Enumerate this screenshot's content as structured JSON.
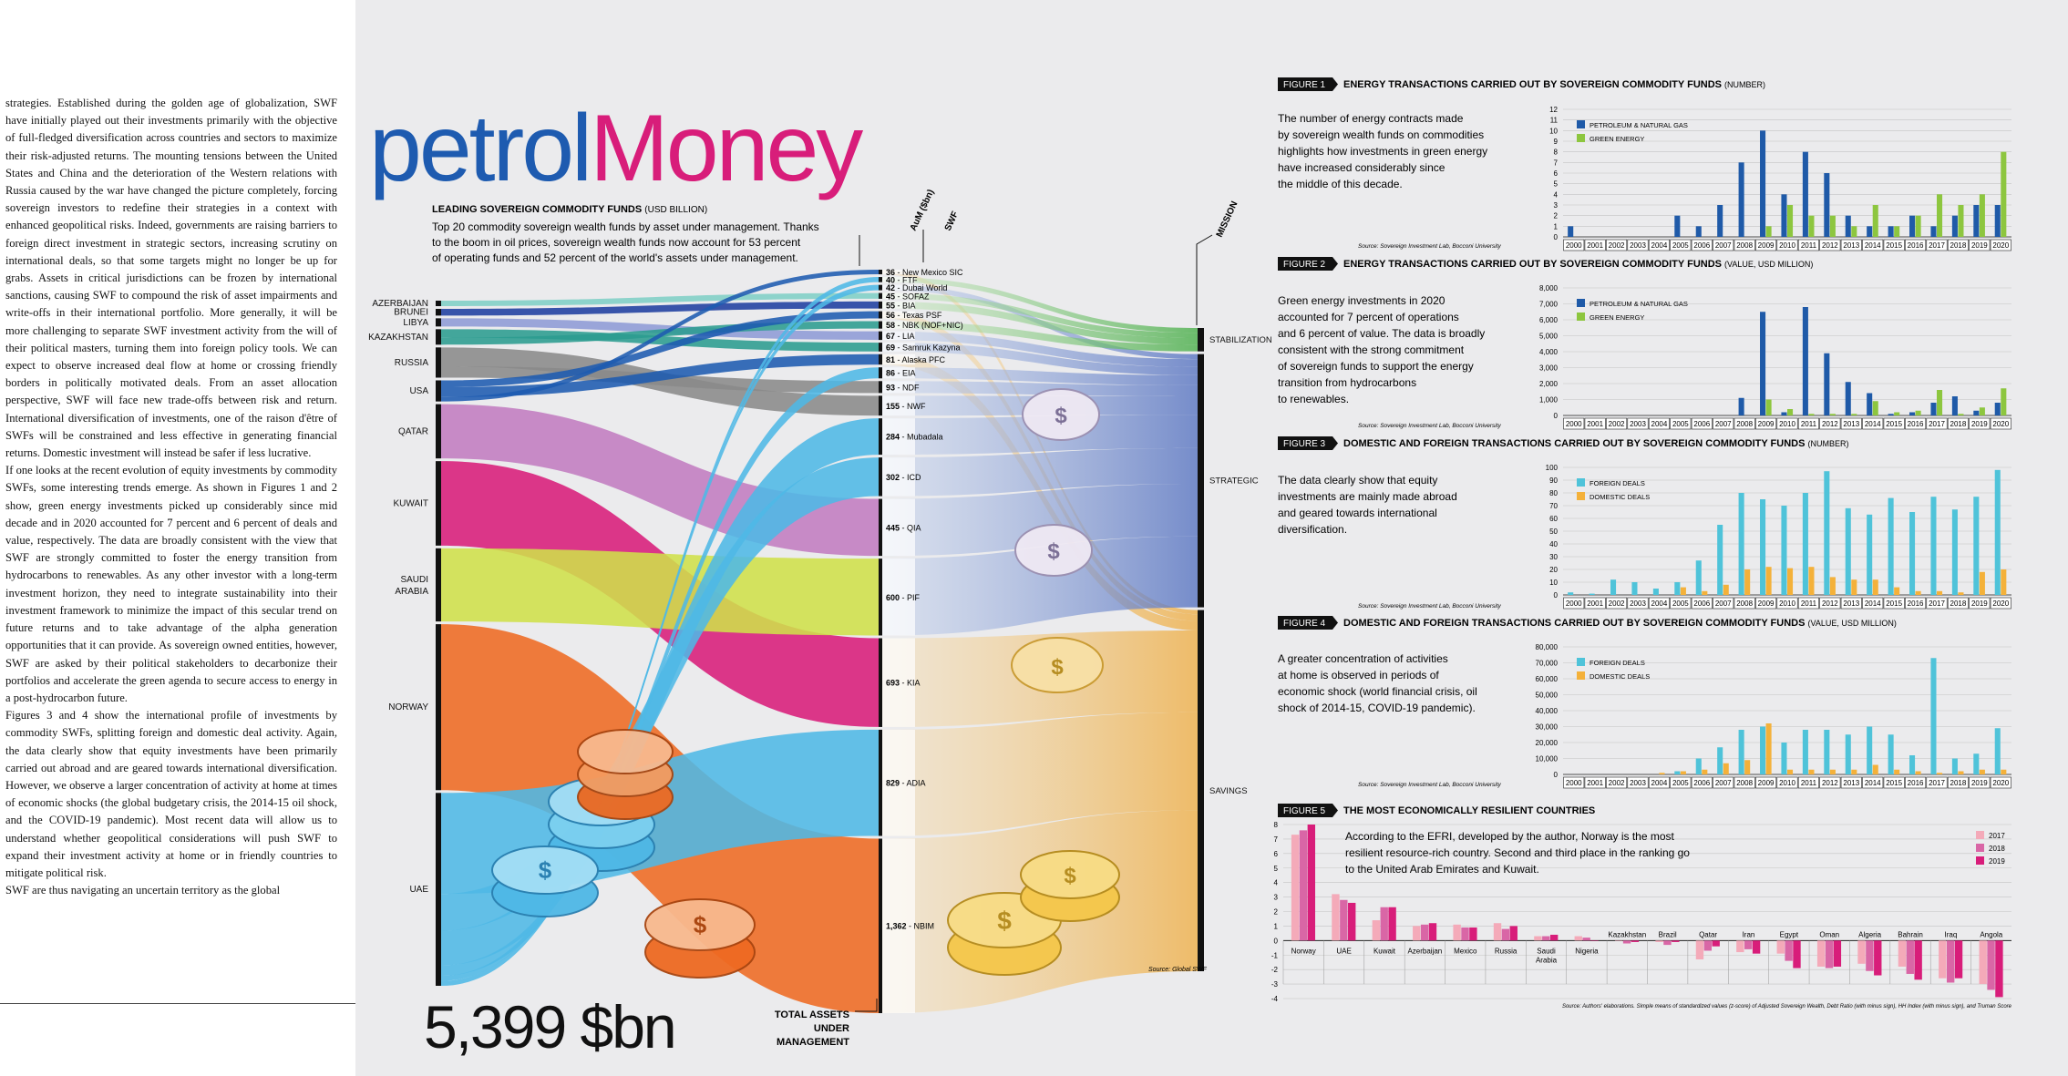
{
  "body_text": {
    "paragraphs": [
      "strategies. Established during the golden age of globalization, SWF have initially played out their investments primarily with the objective of full-fledged diversification across countries and sectors to maximize their risk-adjusted returns. The mounting tensions between the United States and China and the deterioration of the Western relations with Russia caused by the war have changed the picture completely, forcing sovereign investors to redefine their strategies in a context with enhanced geopolitical risks. Indeed, governments are raising barriers to foreign direct investment in strategic sectors, increasing scrutiny on international deals, so that some targets might no longer be up for grabs. Assets in critical jurisdictions can be frozen by international sanctions, causing SWF to compound the risk of asset impairments and write-offs in their international portfolio. More generally, it will be more challenging to separate SWF investment activity from the will of their political masters, turning them into foreign policy tools. We can expect to observe increased deal flow at home or crossing friendly borders in politically motivated deals. From an asset allocation perspective, SWF will face new trade-offs between risk and return. International diversification of investments, one of the raison d'être of SWFs will be constrained and less effective in generating financial returns. Domestic investment will instead be safer if less lucrative.",
      "If one looks at the recent evolution of equity investments by commodity SWFs, some interesting trends emerge. As shown in Figures 1 and 2 show, green energy investments picked up considerably since mid decade and in 2020 accounted for 7 percent and 6 percent of deals and value, respectively. The data are broadly consistent with the view that SWF are strongly committed to foster the energy transition from hydrocarbons to renewables. As any other investor with a long-term investment horizon, they need to integrate sustainability into their investment framework to minimize the impact of this secular trend on future returns and to take advantage of the alpha generation opportunities that it can provide. As sovereign owned entities, however, SWF are asked by their political stakeholders to decarbonize their portfolios and accelerate the green agenda to secure access to energy in a post-hydrocarbon future.",
      "Figures 3 and 4 show the international profile of investments by commodity SWFs, splitting foreign and domestic deal activity. Again, the data clearly show that equity investments have been primarily carried out abroad and are geared towards international diversification. However, we observe a larger concentration of activity at home at times of economic shocks (the global budgetary crisis, the 2014-15 oil shock, and the COVID-19 pandemic). Most recent data will allow us to understand whether geopolitical considerations will push SWF to expand their investment activity at home or in friendly countries to mitigate political risk.",
      "SWF are thus navigating an uncertain territory as the global"
    ]
  },
  "header": {
    "title_part1": "petrol",
    "title_part2": "Money"
  },
  "sankey": {
    "heading": "LEADING SOVEREIGN COMMODITY FUNDS",
    "heading_unit": "(USD BILLION)",
    "intro": [
      "Top 20 commodity sovereign wealth funds by asset under management. Thanks",
      "to the boom in oil prices, sovereign wealth funds now account for 53 percent",
      "of operating funds and 52 percent of the world's assets under management."
    ],
    "col_aum": "AuM ($bn)",
    "col_swf": "SWF",
    "col_mission": "MISSION",
    "total_value": "5,399 $bn",
    "total_label": [
      "TOTAL ASSETS",
      "UNDER",
      "MANAGEMENT"
    ],
    "source": "Source: Global SWF",
    "countries": [
      {
        "name": "AZERBAIJAN",
        "color": "#7fcfc6"
      },
      {
        "name": "BRUNEI",
        "color": "#1f3fa0"
      },
      {
        "name": "LIBYA",
        "color": "#8e9bd6"
      },
      {
        "name": "KAZAKHSTAN",
        "color": "#2b9c8f"
      },
      {
        "name": "RUSSIA",
        "color": "#8a8a8a"
      },
      {
        "name": "USA",
        "color": "#1e5bb0"
      },
      {
        "name": "QATAR",
        "color": "#c27cc0"
      },
      {
        "name": "KUWAIT",
        "color": "#d81d7a"
      },
      {
        "name": "SAUDI ARABIA",
        "color": "#cfe04a"
      },
      {
        "name": "NORWAY",
        "color": "#ee6a22"
      },
      {
        "name": "UAE",
        "color": "#4fb8e6"
      }
    ],
    "funds": [
      {
        "aum": "36",
        "name": "New Mexico SIC",
        "color": "#1e5bb0"
      },
      {
        "aum": "40",
        "name": "FTF",
        "color": "#ee6a22"
      },
      {
        "aum": "42",
        "name": "Dubai World",
        "color": "#4fb8e6"
      },
      {
        "aum": "45",
        "name": "SOFAZ",
        "color": "#7fcfc6"
      },
      {
        "aum": "55",
        "name": "BIA",
        "color": "#d81d7a"
      },
      {
        "aum": "56",
        "name": "Texas PSF",
        "color": "#1e5bb0"
      },
      {
        "aum": "58",
        "name": "NBK (NOF+NIC)",
        "color": "#1e5bb0"
      },
      {
        "aum": "67",
        "name": "LIA",
        "color": "#8e9bd6"
      },
      {
        "aum": "69",
        "name": "Samruk Kazyna",
        "color": "#2b9c8f"
      },
      {
        "aum": "81",
        "name": "Alaska PFC",
        "color": "#1e5bb0"
      },
      {
        "aum": "86",
        "name": "EIA",
        "color": "#4fb8e6"
      },
      {
        "aum": "93",
        "name": "NDF",
        "color": "#cfe04a"
      },
      {
        "aum": "155",
        "name": "NWF",
        "color": "#777777"
      },
      {
        "aum": "284",
        "name": "Mubadala",
        "color": "#4fb8e6"
      },
      {
        "aum": "302",
        "name": "ICD",
        "color": "#4fb8e6"
      },
      {
        "aum": "445",
        "name": "QIA",
        "color": "#c27cc0"
      },
      {
        "aum": "600",
        "name": "PIF",
        "color": "#cfe04a"
      },
      {
        "aum": "693",
        "name": "KIA",
        "color": "#d81d7a"
      },
      {
        "aum": "829",
        "name": "ADIA",
        "color": "#4fb8e6"
      },
      {
        "aum": "1,362",
        "name": "NBIM",
        "color": "#ee6a22"
      }
    ],
    "missions": [
      {
        "name": "STABILIZATION",
        "color": "#4caf4c"
      },
      {
        "name": "STRATEGIC",
        "color": "#5a76c2"
      },
      {
        "name": "SAVINGS",
        "color": "#eeb04a"
      }
    ]
  },
  "figures": [
    {
      "tag": "FIGURE 1",
      "title": "ENERGY TRANSACTIONS CARRIED OUT BY SOVEREIGN COMMODITY FUNDS",
      "unit": "(NUMBER)",
      "text": [
        "The number of energy contracts made",
        "by sovereign wealth funds on commodities",
        "highlights how investments in green energy",
        "have increased considerably since",
        "the middle of this decade."
      ],
      "source": "Source: Sovereign Investment Lab, Bocconi University"
    },
    {
      "tag": "FIGURE 2",
      "title": "ENERGY TRANSACTIONS CARRIED OUT BY SOVEREIGN COMMODITY FUNDS",
      "unit": "(VALUE, USD MILLION)",
      "text": [
        "Green energy investments in 2020",
        "accounted for 7 percent of operations",
        "and 6 percent of value. The data is broadly",
        "consistent with the strong commitment",
        "of sovereign funds to support the energy",
        "transition from hydrocarbons",
        "to renewables."
      ],
      "source": "Source: Sovereign Investment Lab, Bocconi University"
    },
    {
      "tag": "FIGURE 3",
      "title": "DOMESTIC AND FOREIGN TRANSACTIONS CARRIED OUT BY SOVEREIGN COMMODITY FUNDS",
      "unit": "(NUMBER)",
      "text": [
        "The data clearly show that equity",
        "investments are mainly made abroad",
        "and geared towards international",
        "diversification."
      ],
      "source": "Source: Sovereign Investment Lab, Bocconi University"
    },
    {
      "tag": "FIGURE 4",
      "title": "DOMESTIC AND FOREIGN TRANSACTIONS CARRIED OUT BY SOVEREIGN COMMODITY FUNDS",
      "unit": "(VALUE, USD MILLION)",
      "text": [
        "A greater concentration of activities",
        "at home is observed in periods of",
        "economic shock (world financial crisis, oil",
        "shock of 2014-15, COVID-19 pandemic)."
      ],
      "source": "Source: Sovereign Investment Lab, Bocconi University"
    },
    {
      "tag": "FIGURE 5",
      "title": "THE MOST ECONOMICALLY RESILIENT COUNTRIES",
      "unit": "",
      "text": [
        "According to the EFRI, developed by the author, Norway is the most",
        "resilient resource-rich country. Second and third place in the ranking go",
        "to the United Arab Emirates and Kuwait."
      ],
      "source": "Source: Authors' elaborations. Simple means of standardized values (z-score) of Adjusted Sovereign Wealth, Debt Ratio (with minus sign), HH Index (with minus sign), and Truman Score"
    }
  ],
  "chart_data": [
    {
      "type": "bar",
      "id": "fig1",
      "categories": [
        "2000",
        "2001",
        "2002",
        "2003",
        "2004",
        "2005",
        "2006",
        "2007",
        "2008",
        "2009",
        "2010",
        "2011",
        "2012",
        "2013",
        "2014",
        "2015",
        "2016",
        "2017",
        "2018",
        "2019",
        "2020"
      ],
      "series": [
        {
          "name": "PETROLEUM & NATURAL GAS",
          "color": "#1f5aa8",
          "values": [
            1,
            0,
            0,
            0,
            0,
            2,
            1,
            3,
            7,
            10,
            4,
            8,
            6,
            2,
            1,
            1,
            2,
            1,
            2,
            3,
            3
          ]
        },
        {
          "name": "GREEN ENERGY",
          "color": "#8dc63f",
          "values": [
            0,
            0,
            0,
            0,
            0,
            0,
            0,
            0,
            0,
            1,
            3,
            2,
            2,
            1,
            3,
            1,
            2,
            4,
            3,
            4,
            8
          ]
        }
      ],
      "ylim": [
        0,
        12
      ],
      "yticks": [
        0,
        1,
        2,
        3,
        4,
        5,
        6,
        7,
        8,
        9,
        10,
        11,
        12
      ],
      "ytick_labels": [
        "0",
        "1",
        "2",
        "3",
        "4",
        "5",
        "6",
        "7",
        "8",
        "9",
        "10",
        "11",
        "12"
      ]
    },
    {
      "type": "bar",
      "id": "fig2",
      "categories": [
        "2000",
        "2001",
        "2002",
        "2003",
        "2004",
        "2005",
        "2006",
        "2007",
        "2008",
        "2009",
        "2010",
        "2011",
        "2012",
        "2013",
        "2014",
        "2015",
        "2016",
        "2017",
        "2018",
        "2019",
        "2020"
      ],
      "series": [
        {
          "name": "PETROLEUM & NATURAL GAS",
          "color": "#1f5aa8",
          "values": [
            0,
            0,
            0,
            0,
            0,
            0,
            0,
            0,
            1100,
            6500,
            200,
            6800,
            3900,
            2100,
            1400,
            100,
            200,
            800,
            1200,
            300,
            800
          ]
        },
        {
          "name": "GREEN ENERGY",
          "color": "#8dc63f",
          "values": [
            0,
            0,
            0,
            0,
            0,
            0,
            0,
            0,
            0,
            1000,
            400,
            100,
            100,
            100,
            900,
            200,
            300,
            1600,
            100,
            500,
            1700
          ]
        }
      ],
      "ylim": [
        0,
        8000
      ],
      "yticks": [
        0,
        1000,
        2000,
        3000,
        4000,
        5000,
        6000,
        7000,
        8000
      ],
      "ytick_labels": [
        "0",
        "1,000",
        "2,000",
        "3,000",
        "4,000",
        "5,000",
        "6,000",
        "7,000",
        "8,000"
      ]
    },
    {
      "type": "bar",
      "id": "fig3",
      "categories": [
        "2000",
        "2001",
        "2002",
        "2003",
        "2004",
        "2005",
        "2006",
        "2007",
        "2008",
        "2009",
        "2010",
        "2011",
        "2012",
        "2013",
        "2014",
        "2015",
        "2016",
        "2017",
        "2018",
        "2019",
        "2020"
      ],
      "series": [
        {
          "name": "FOREIGN DEALS",
          "color": "#4fc3d9",
          "values": [
            2,
            1,
            12,
            10,
            5,
            10,
            27,
            55,
            80,
            75,
            70,
            80,
            97,
            68,
            63,
            76,
            65,
            77,
            67,
            77,
            98
          ]
        },
        {
          "name": "DOMESTIC DEALS",
          "color": "#f4b13a",
          "values": [
            0,
            0,
            0,
            0,
            0,
            6,
            3,
            8,
            20,
            22,
            21,
            22,
            14,
            12,
            12,
            6,
            3,
            3,
            2,
            18,
            20
          ]
        }
      ],
      "ylim": [
        0,
        100
      ],
      "yticks": [
        0,
        10,
        20,
        30,
        40,
        50,
        60,
        70,
        80,
        90,
        100
      ],
      "ytick_labels": [
        "0",
        "10",
        "20",
        "30",
        "40",
        "50",
        "60",
        "70",
        "80",
        "90",
        "100"
      ]
    },
    {
      "type": "bar",
      "id": "fig4",
      "categories": [
        "2000",
        "2001",
        "2002",
        "2003",
        "2004",
        "2005",
        "2006",
        "2007",
        "2008",
        "2009",
        "2010",
        "2011",
        "2012",
        "2013",
        "2014",
        "2015",
        "2016",
        "2017",
        "2018",
        "2019",
        "2020"
      ],
      "series": [
        {
          "name": "FOREIGN DEALS",
          "color": "#4fc3d9",
          "values": [
            0,
            0,
            0,
            0,
            0,
            2000,
            10000,
            17000,
            28000,
            30000,
            20000,
            28000,
            28000,
            25000,
            30000,
            25000,
            12000,
            73000,
            10000,
            13000,
            29000
          ]
        },
        {
          "name": "DOMESTIC DEALS",
          "color": "#f4b13a",
          "values": [
            0,
            0,
            0,
            0,
            1000,
            2000,
            3000,
            7000,
            9000,
            32000,
            3000,
            3000,
            3000,
            3000,
            6000,
            3000,
            2000,
            1000,
            2000,
            3000,
            3000
          ]
        }
      ],
      "ylim": [
        0,
        80000
      ],
      "yticks": [
        0,
        10000,
        20000,
        30000,
        40000,
        50000,
        60000,
        70000,
        80000
      ],
      "ytick_labels": [
        "0",
        "10,000",
        "20,000",
        "30,000",
        "40,000",
        "50,000",
        "60,000",
        "70,000",
        "80,000"
      ]
    },
    {
      "type": "bar",
      "id": "fig5",
      "categories": [
        "Norway",
        "UAE",
        "Kuwait",
        "Azerbaijan",
        "Mexico",
        "Russia",
        "Saudi Arabia",
        "Nigeria",
        "Kazakhstan",
        "Brazil",
        "Qatar",
        "Iran",
        "Egypt",
        "Oman",
        "Algeria",
        "Bahrain",
        "Iraq",
        "Angola"
      ],
      "series": [
        {
          "name": "2017",
          "color": "#f4aab9",
          "values": [
            7.3,
            3.2,
            1.4,
            1.0,
            1.1,
            1.2,
            0.3,
            0.3,
            0.0,
            -0.1,
            -1.3,
            -0.8,
            -0.9,
            -1.8,
            -1.6,
            -1.8,
            -2.6,
            -3.0
          ]
        },
        {
          "name": "2018",
          "color": "#d966a6",
          "values": [
            7.6,
            2.8,
            2.3,
            1.1,
            0.9,
            0.8,
            0.3,
            0.2,
            -0.2,
            -0.3,
            -0.7,
            -0.6,
            -1.4,
            -1.9,
            -2.1,
            -2.3,
            -2.9,
            -3.4
          ]
        },
        {
          "name": "2019",
          "color": "#d81d7a",
          "values": [
            8.0,
            2.6,
            2.3,
            1.2,
            0.9,
            1.0,
            0.4,
            0.0,
            -0.1,
            -0.1,
            -0.4,
            -0.9,
            -1.9,
            -1.8,
            -2.4,
            -2.7,
            -2.6,
            -3.9
          ]
        }
      ],
      "ylim": [
        -4,
        8
      ],
      "yticks": [
        -4,
        -3,
        -2,
        -1,
        0,
        1,
        2,
        3,
        4,
        5,
        6,
        7,
        8
      ],
      "ytick_labels": [
        "-4",
        "-3",
        "-2",
        "-1",
        "0",
        "1",
        "2",
        "3",
        "4",
        "5",
        "6",
        "7",
        "8"
      ]
    }
  ]
}
